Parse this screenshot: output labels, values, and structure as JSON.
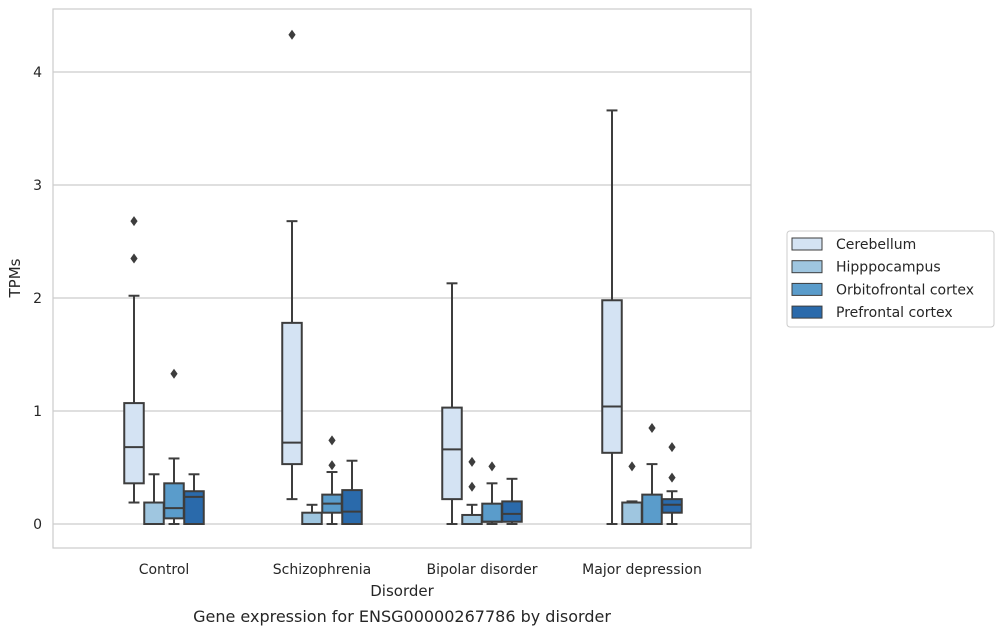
{
  "chart_data": {
    "type": "box",
    "categories": [
      "Control",
      "Schizophrenia",
      "Bipolar disorder",
      "Major depression"
    ],
    "xlabel": "Disorder",
    "ylabel": "TPMs",
    "caption": "Gene expression for ENSG00000267786 by disorder",
    "ylim": [
      -0.2,
      4.55
    ],
    "yticks": [
      "0",
      "1",
      "2",
      "3",
      "4"
    ],
    "grid": "horizontal",
    "legend_position": "right",
    "series": [
      {
        "name": "Cerebellum",
        "color": "#d4e3f3",
        "boxes": [
          {
            "whisker_low": 0.19,
            "q1": 0.36,
            "median": 0.68,
            "q3": 1.07,
            "whisker_high": 2.02,
            "outliers": [
              2.35,
              2.68
            ]
          },
          {
            "whisker_low": 0.22,
            "q1": 0.53,
            "median": 0.72,
            "q3": 1.78,
            "whisker_high": 2.68,
            "outliers": [
              4.33
            ]
          },
          {
            "whisker_low": 0.0,
            "q1": 0.22,
            "median": 0.66,
            "q3": 1.03,
            "whisker_high": 2.13,
            "outliers": []
          },
          {
            "whisker_low": 0.0,
            "q1": 0.63,
            "median": 1.04,
            "q3": 1.98,
            "whisker_high": 3.66,
            "outliers": []
          }
        ]
      },
      {
        "name": "Hipppocampus",
        "color": "#9fc6e0",
        "boxes": [
          {
            "whisker_low": 0.0,
            "q1": 0.0,
            "median": 0.0,
            "q3": 0.19,
            "whisker_high": 0.44,
            "outliers": []
          },
          {
            "whisker_low": 0.0,
            "q1": 0.0,
            "median": 0.0,
            "q3": 0.1,
            "whisker_high": 0.17,
            "outliers": []
          },
          {
            "whisker_low": 0.0,
            "q1": 0.0,
            "median": 0.0,
            "q3": 0.08,
            "whisker_high": 0.17,
            "outliers": [
              0.33,
              0.55
            ]
          },
          {
            "whisker_low": 0.0,
            "q1": 0.0,
            "median": 0.0,
            "q3": 0.19,
            "whisker_high": 0.2,
            "outliers": [
              0.51
            ]
          }
        ]
      },
      {
        "name": "Orbitofrontal cortex",
        "color": "#5a9ccb",
        "boxes": [
          {
            "whisker_low": 0.0,
            "q1": 0.05,
            "median": 0.14,
            "q3": 0.36,
            "whisker_high": 0.58,
            "outliers": [
              1.33
            ]
          },
          {
            "whisker_low": 0.0,
            "q1": 0.1,
            "median": 0.18,
            "q3": 0.26,
            "whisker_high": 0.46,
            "outliers": [
              0.52,
              0.74
            ]
          },
          {
            "whisker_low": 0.0,
            "q1": 0.02,
            "median": 0.02,
            "q3": 0.18,
            "whisker_high": 0.36,
            "outliers": [
              0.51
            ]
          },
          {
            "whisker_low": 0.0,
            "q1": 0.0,
            "median": 0.0,
            "q3": 0.26,
            "whisker_high": 0.53,
            "outliers": [
              0.85
            ]
          }
        ]
      },
      {
        "name": "Prefrontal cortex",
        "color": "#2a6aab",
        "boxes": [
          {
            "whisker_low": 0.0,
            "q1": 0.0,
            "median": 0.24,
            "q3": 0.29,
            "whisker_high": 0.44,
            "outliers": []
          },
          {
            "whisker_low": 0.0,
            "q1": 0.0,
            "median": 0.11,
            "q3": 0.3,
            "whisker_high": 0.56,
            "outliers": []
          },
          {
            "whisker_low": 0.0,
            "q1": 0.02,
            "median": 0.09,
            "q3": 0.2,
            "whisker_high": 0.4,
            "outliers": []
          },
          {
            "whisker_low": 0.0,
            "q1": 0.1,
            "median": 0.17,
            "q3": 0.22,
            "whisker_high": 0.29,
            "outliers": [
              0.41,
              0.68
            ]
          }
        ]
      }
    ]
  }
}
